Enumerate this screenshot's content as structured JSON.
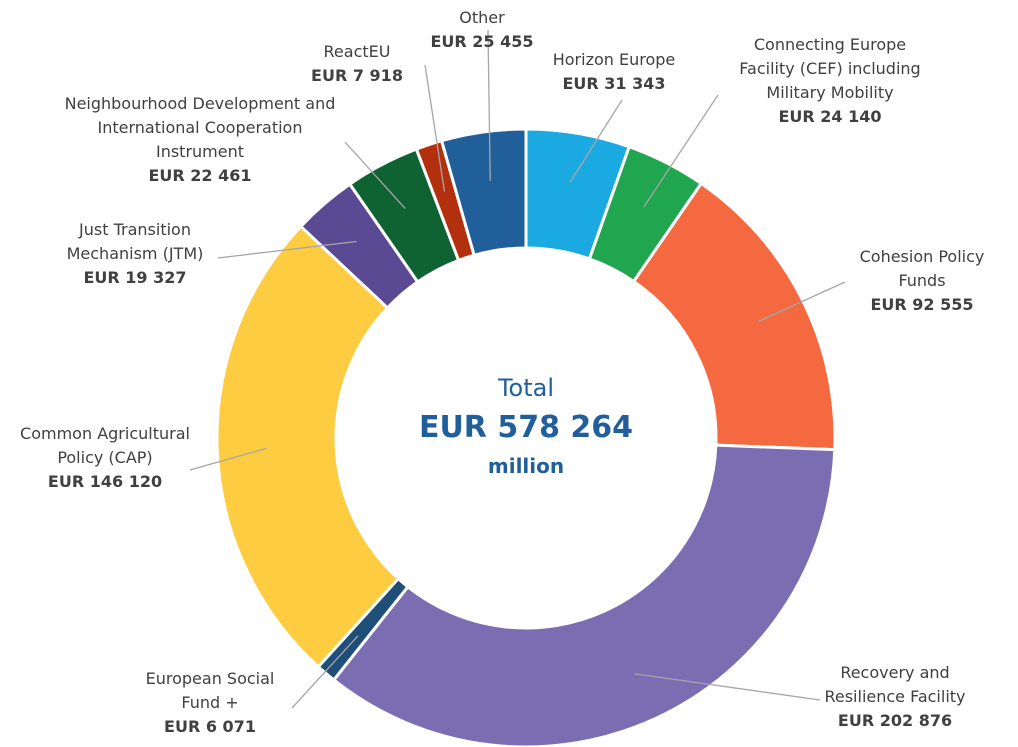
{
  "chart_data": {
    "type": "donut",
    "categories": [
      "Horizon Europe",
      "Connecting Europe Facility (CEF) including Military Mobility",
      "Cohesion Policy Funds",
      "Recovery and Resilience Facility",
      "European Social Fund +",
      "Common Agricultural Policy (CAP)",
      "Just Transition Mechanism (JTM)",
      "Neighbourhood Development and International Cooperation Instrument",
      "ReactEU",
      "Other"
    ],
    "values": [
      31343,
      24140,
      92555,
      202876,
      6071,
      146120,
      19327,
      22461,
      7918,
      25455
    ],
    "value_labels": [
      "EUR 31 343",
      "EUR 24 140",
      "EUR 92 555",
      "EUR 202 876",
      "EUR 6 071",
      "EUR 146 120",
      "EUR 19 327",
      "EUR 22 461",
      "EUR 7 918",
      "EUR 25 455"
    ],
    "colors": [
      "#1ba9e1",
      "#1fa64f",
      "#f4693f",
      "#7b6db2",
      "#1f4e79",
      "#fecc40",
      "#5a4a94",
      "#0f6232",
      "#b2300e",
      "#215f9a"
    ],
    "center_title": "Total",
    "total": 578264,
    "total_label": "EUR 578 264",
    "total_unit": "million"
  }
}
